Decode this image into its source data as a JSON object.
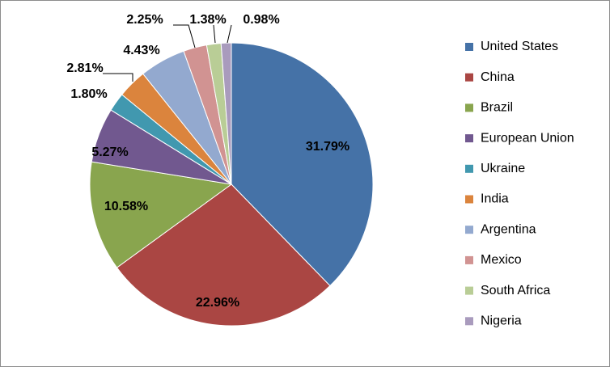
{
  "chart_data": {
    "type": "pie",
    "title": "",
    "legend_position": "right",
    "slices": [
      {
        "name": "United States",
        "value": 31.79,
        "label": "31.79%",
        "color": "#4572a7"
      },
      {
        "name": "China",
        "value": 22.96,
        "label": "22.96%",
        "color": "#aa4643"
      },
      {
        "name": "Brazil",
        "value": 10.58,
        "label": "10.58%",
        "color": "#89a54e"
      },
      {
        "name": "European Union",
        "value": 5.27,
        "label": "5.27%",
        "color": "#71588f"
      },
      {
        "name": "Ukraine",
        "value": 1.8,
        "label": "1.80%",
        "color": "#4198af"
      },
      {
        "name": "India",
        "value": 2.81,
        "label": "2.81%",
        "color": "#db843d"
      },
      {
        "name": "Argentina",
        "value": 4.43,
        "label": "4.43%",
        "color": "#93a9cf"
      },
      {
        "name": "Mexico",
        "value": 2.25,
        "label": "2.25%",
        "color": "#d19392"
      },
      {
        "name": "South Africa",
        "value": 1.38,
        "label": "1.38%",
        "color": "#b9cd96"
      },
      {
        "name": "Nigeria",
        "value": 0.98,
        "label": "0.98%",
        "color": "#a99bbd"
      }
    ]
  }
}
